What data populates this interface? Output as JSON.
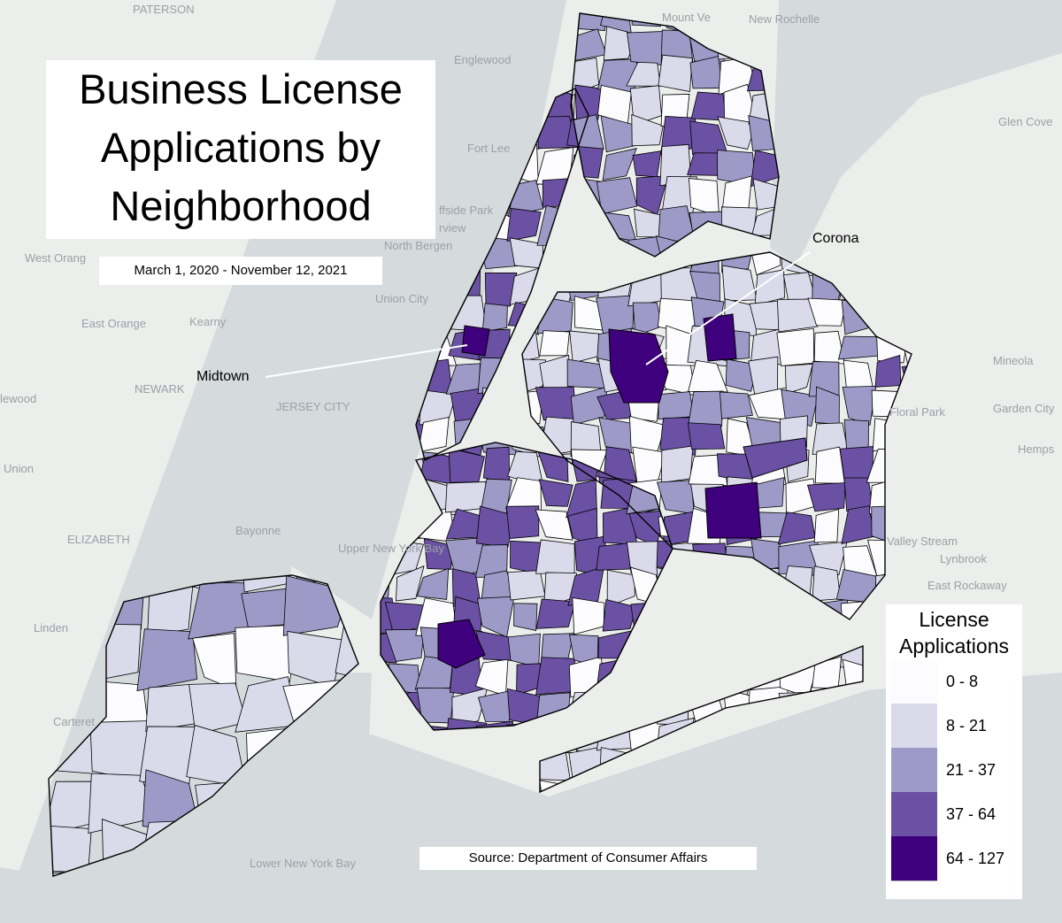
{
  "title": "Business License Applications by Neighborhood",
  "subtitle": "March 1, 2020 - November 12, 2021",
  "source": "Source: Department of Consumer Affairs",
  "annotations": [
    "Corona",
    "Midtown"
  ],
  "legend": {
    "title": "License Applications",
    "items": [
      {
        "label": "0 - 8",
        "color": "#fcfbfd"
      },
      {
        "label": "8 - 21",
        "color": "#dadaeb"
      },
      {
        "label": "21 - 37",
        "color": "#9e9ac8"
      },
      {
        "label": "37 - 64",
        "color": "#6a51a3"
      },
      {
        "label": "64 - 127",
        "color": "#3f007d"
      }
    ]
  },
  "places": [
    "PATERSON",
    "Mount Ve",
    "New Rochelle",
    "Englewood",
    "Glen Cove",
    "Fort Lee",
    "ffside Park",
    "rview",
    "North Bergen",
    "West Orang",
    "Union City",
    "East Orange",
    "Kearny",
    "NEWARK",
    "Mineola",
    "JERSEY CITY",
    "Floral Park",
    "Garden City",
    "Hemps",
    "Union",
    "ELIZABETH",
    "Bayonne",
    "Upper New York Bay",
    "Valley Stream",
    "Lynbrook",
    "East Rockaway",
    "Linden",
    "Carteret",
    "Lower New York Bay",
    "lewood"
  ]
}
